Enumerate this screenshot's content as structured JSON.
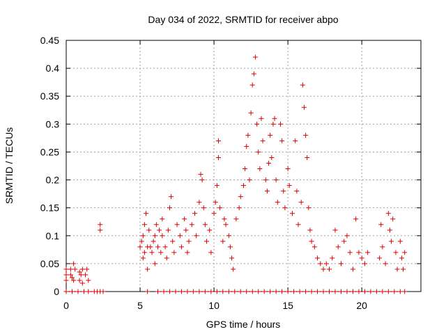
{
  "chart_data": {
    "type": "scatter",
    "title": "Day 034 of 2022, SRMTID for receiver abpo",
    "xlabel": "GPS time / hours",
    "ylabel": "SRMTID / TECUs",
    "xlim": [
      0,
      24
    ],
    "ylim": [
      0,
      0.45
    ],
    "xticks": [
      0,
      5,
      10,
      15,
      20
    ],
    "xtick_labels": [
      "0",
      "5",
      "10",
      "15",
      "20"
    ],
    "yticks": [
      0,
      0.05,
      0.1,
      0.15,
      0.2,
      0.25,
      0.3,
      0.35,
      0.4,
      0.45
    ],
    "ytick_labels": [
      "0",
      "0.05",
      "0.1",
      "0.15",
      "0.2",
      "0.25",
      "0.3",
      "0.35",
      "0.4",
      "0.45"
    ],
    "grid": true,
    "marker": "+",
    "color": "#dd0000",
    "series": [
      {
        "name": "SRMTID",
        "points": [
          [
            0.0,
            0.02
          ],
          [
            0.0,
            0.03
          ],
          [
            0.0,
            0.04
          ],
          [
            0.3,
            0.03
          ],
          [
            0.3,
            0.04
          ],
          [
            0.4,
            0.025
          ],
          [
            0.5,
            0.05
          ],
          [
            0.5,
            0.02
          ],
          [
            0.6,
            0.04
          ],
          [
            0.9,
            0.02
          ],
          [
            0.9,
            0.035
          ],
          [
            1.0,
            0.03
          ],
          [
            1.1,
            0.015
          ],
          [
            1.1,
            0.04
          ],
          [
            1.3,
            0.03
          ],
          [
            1.4,
            0.04
          ],
          [
            1.5,
            0.02
          ],
          [
            2.3,
            0.12
          ],
          [
            2.3,
            0.11
          ],
          [
            5.0,
            0.08
          ],
          [
            5.1,
            0.09
          ],
          [
            5.2,
            0.06
          ],
          [
            5.2,
            0.1
          ],
          [
            5.3,
            0.12
          ],
          [
            5.3,
            0.07
          ],
          [
            5.4,
            0.14
          ],
          [
            5.5,
            0.08
          ],
          [
            5.5,
            0.04
          ],
          [
            5.6,
            0.11
          ],
          [
            5.7,
            0.08
          ],
          [
            5.8,
            0.07
          ],
          [
            5.9,
            0.09
          ],
          [
            6.0,
            0.1
          ],
          [
            6.0,
            0.05
          ],
          [
            6.1,
            0.12
          ],
          [
            6.2,
            0.08
          ],
          [
            6.3,
            0.11
          ],
          [
            6.4,
            0.07
          ],
          [
            6.5,
            0.1
          ],
          [
            6.5,
            0.13
          ],
          [
            6.7,
            0.08
          ],
          [
            6.8,
            0.06
          ],
          [
            6.9,
            0.11
          ],
          [
            7.0,
            0.15
          ],
          [
            7.1,
            0.17
          ],
          [
            7.2,
            0.09
          ],
          [
            7.3,
            0.07
          ],
          [
            7.5,
            0.12
          ],
          [
            7.7,
            0.1
          ],
          [
            7.8,
            0.08
          ],
          [
            8.0,
            0.13
          ],
          [
            8.1,
            0.11
          ],
          [
            8.2,
            0.07
          ],
          [
            8.3,
            0.09
          ],
          [
            8.5,
            0.12
          ],
          [
            8.7,
            0.14
          ],
          [
            8.8,
            0.1
          ],
          [
            9.0,
            0.16
          ],
          [
            9.1,
            0.21
          ],
          [
            9.2,
            0.2
          ],
          [
            9.3,
            0.15
          ],
          [
            9.4,
            0.12
          ],
          [
            9.5,
            0.09
          ],
          [
            9.7,
            0.11
          ],
          [
            9.8,
            0.07
          ],
          [
            10.0,
            0.14
          ],
          [
            10.1,
            0.16
          ],
          [
            10.2,
            0.19
          ],
          [
            10.3,
            0.24
          ],
          [
            10.3,
            0.27
          ],
          [
            10.4,
            0.15
          ],
          [
            10.6,
            0.09
          ],
          [
            10.7,
            0.13
          ],
          [
            10.8,
            0.12
          ],
          [
            11.0,
            0.1
          ],
          [
            11.1,
            0.08
          ],
          [
            11.2,
            0.06
          ],
          [
            11.3,
            0.04
          ],
          [
            11.5,
            0.13
          ],
          [
            11.7,
            0.15
          ],
          [
            11.8,
            0.17
          ],
          [
            12.0,
            0.19
          ],
          [
            12.1,
            0.22
          ],
          [
            12.2,
            0.26
          ],
          [
            12.3,
            0.28
          ],
          [
            12.4,
            0.2
          ],
          [
            12.5,
            0.32
          ],
          [
            12.6,
            0.37
          ],
          [
            12.7,
            0.39
          ],
          [
            12.8,
            0.42
          ],
          [
            12.9,
            0.3
          ],
          [
            13.0,
            0.25
          ],
          [
            13.1,
            0.22
          ],
          [
            13.2,
            0.31
          ],
          [
            13.3,
            0.27
          ],
          [
            13.5,
            0.2
          ],
          [
            13.6,
            0.18
          ],
          [
            13.7,
            0.23
          ],
          [
            13.8,
            0.28
          ],
          [
            13.9,
            0.24
          ],
          [
            14.0,
            0.3
          ],
          [
            14.1,
            0.31
          ],
          [
            14.2,
            0.2
          ],
          [
            14.3,
            0.16
          ],
          [
            14.5,
            0.3
          ],
          [
            14.6,
            0.27
          ],
          [
            14.7,
            0.18
          ],
          [
            14.8,
            0.15
          ],
          [
            15.0,
            0.22
          ],
          [
            15.1,
            0.19
          ],
          [
            15.3,
            0.14
          ],
          [
            15.5,
            0.27
          ],
          [
            15.6,
            0.18
          ],
          [
            15.7,
            0.12
          ],
          [
            15.9,
            0.16
          ],
          [
            16.0,
            0.37
          ],
          [
            16.1,
            0.33
          ],
          [
            16.2,
            0.28
          ],
          [
            16.3,
            0.24
          ],
          [
            16.4,
            0.15
          ],
          [
            16.5,
            0.11
          ],
          [
            16.6,
            0.09
          ],
          [
            16.8,
            0.08
          ],
          [
            17.0,
            0.06
          ],
          [
            17.2,
            0.05
          ],
          [
            17.4,
            0.04
          ],
          [
            17.6,
            0.05
          ],
          [
            17.8,
            0.04
          ],
          [
            18.0,
            0.06
          ],
          [
            18.2,
            0.11
          ],
          [
            18.4,
            0.08
          ],
          [
            18.6,
            0.05
          ],
          [
            18.8,
            0.09
          ],
          [
            19.0,
            0.1
          ],
          [
            19.2,
            0.07
          ],
          [
            19.4,
            0.04
          ],
          [
            19.6,
            0.13
          ],
          [
            19.8,
            0.07
          ],
          [
            20.0,
            0.06
          ],
          [
            20.2,
            0.05
          ],
          [
            20.4,
            0.07
          ],
          [
            21.2,
            0.06
          ],
          [
            21.3,
            0.12
          ],
          [
            21.4,
            0.08
          ],
          [
            21.6,
            0.05
          ],
          [
            21.8,
            0.14
          ],
          [
            21.9,
            0.11
          ],
          [
            22.0,
            0.09
          ],
          [
            22.1,
            0.13
          ],
          [
            22.3,
            0.07
          ],
          [
            22.4,
            0.04
          ],
          [
            22.6,
            0.09
          ],
          [
            22.7,
            0.06
          ],
          [
            22.8,
            0.04
          ],
          [
            22.9,
            0.07
          ]
        ]
      }
    ],
    "zero_rows": [
      0.0,
      0.4,
      0.8,
      1.2,
      1.5,
      1.9,
      2.1,
      2.3,
      2.5,
      5.5,
      6.2,
      6.6,
      7.0,
      7.4,
      7.8,
      8.2,
      8.6,
      9.0,
      9.4,
      9.8,
      10.2,
      10.6,
      11.0,
      11.4,
      11.8,
      12.2,
      12.6,
      13.0,
      13.4,
      13.8,
      14.2,
      14.6,
      15.0,
      15.4,
      15.8,
      16.2,
      16.6,
      17.0,
      17.4,
      17.8,
      18.2,
      18.6,
      19.0,
      19.4,
      19.8,
      20.2,
      20.6,
      21.0,
      21.4,
      21.8,
      22.2,
      22.6,
      22.9
    ]
  }
}
